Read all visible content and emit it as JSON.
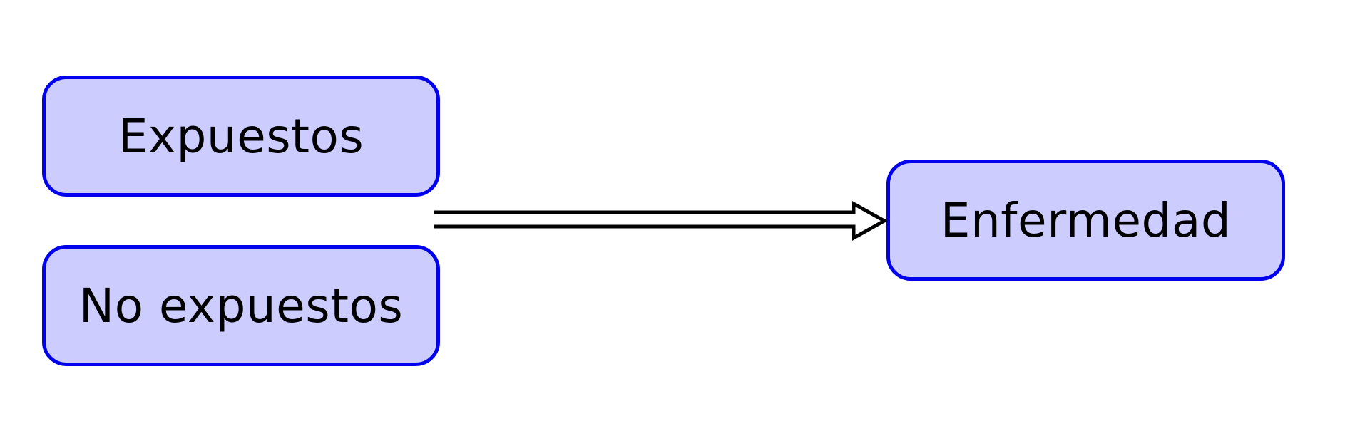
{
  "diagram": {
    "nodes": {
      "exposed": {
        "label": "Expuestos"
      },
      "unexposed": {
        "label": "No expuestos"
      },
      "disease": {
        "label": "Enfermedad"
      }
    },
    "edges": [
      {
        "from": [
          "exposed",
          "unexposed"
        ],
        "to": "disease",
        "style": "double-line-open-arrow"
      }
    ]
  },
  "colors": {
    "node_fill": "#ccccff",
    "node_border": "#0000ee",
    "text": "#000000",
    "arrow": "#000000"
  }
}
